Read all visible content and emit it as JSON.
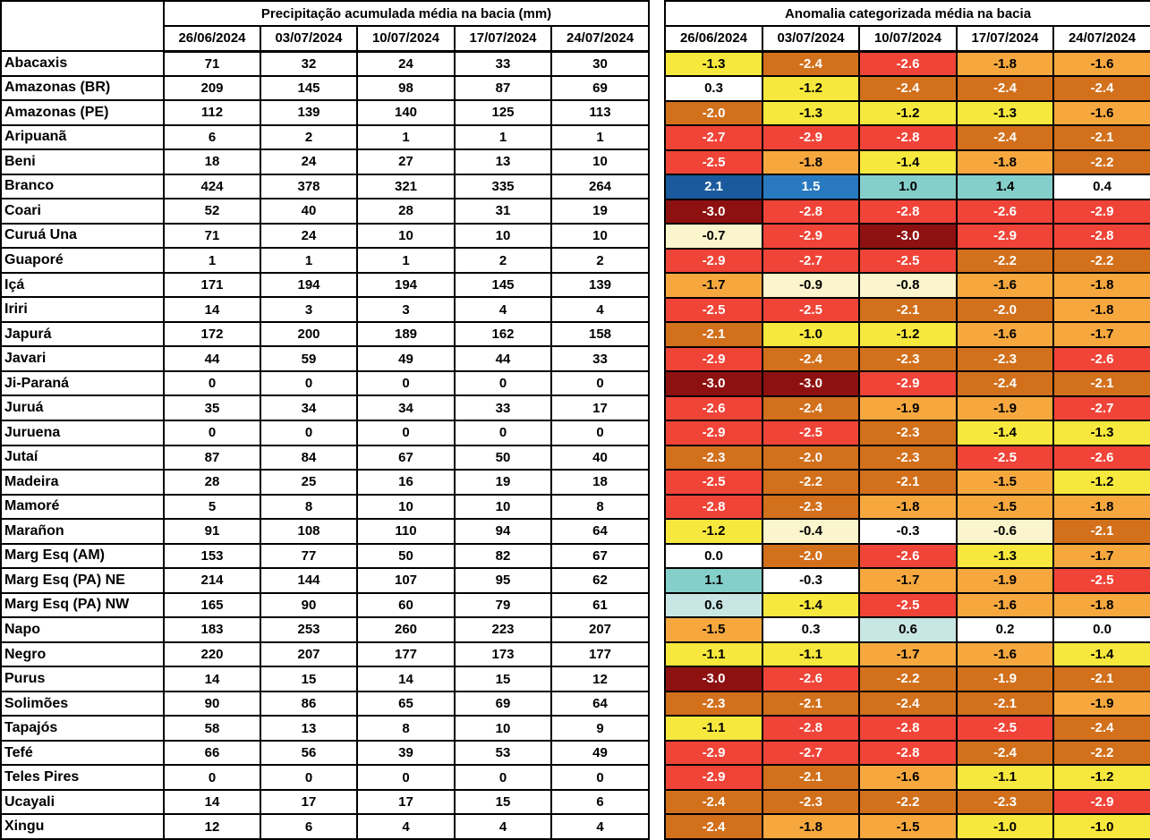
{
  "chart_data": [
    {
      "type": "table",
      "title": "Precipitação acumulada média na bacia (mm)",
      "columns": [
        "26/06/2024",
        "03/07/2024",
        "10/07/2024",
        "17/07/2024",
        "24/07/2024"
      ],
      "rows": [
        "Abacaxis",
        "Amazonas (BR)",
        "Amazonas (PE)",
        "Aripuanã",
        "Beni",
        "Branco",
        "Coari",
        "Curuá Una",
        "Guaporé",
        "Içá",
        "Iriri",
        "Japurá",
        "Javari",
        "Ji-Paraná",
        "Juruá",
        "Juruena",
        "Jutaí",
        "Madeira",
        "Mamoré",
        "Marañon",
        "Marg Esq (AM)",
        "Marg Esq (PA) NE",
        "Marg Esq (PA) NW",
        "Napo",
        "Negro",
        "Purus",
        "Solimões",
        "Tapajós",
        "Tefé",
        "Teles Pires",
        "Ucayali",
        "Xingu"
      ],
      "values": [
        [
          71,
          32,
          24,
          33,
          30
        ],
        [
          209,
          145,
          98,
          87,
          69
        ],
        [
          112,
          139,
          140,
          125,
          113
        ],
        [
          6,
          2,
          1,
          1,
          1
        ],
        [
          18,
          24,
          27,
          13,
          10
        ],
        [
          424,
          378,
          321,
          335,
          264
        ],
        [
          52,
          40,
          28,
          31,
          19
        ],
        [
          71,
          24,
          10,
          10,
          10
        ],
        [
          1,
          1,
          1,
          2,
          2
        ],
        [
          171,
          194,
          194,
          145,
          139
        ],
        [
          14,
          3,
          3,
          4,
          4
        ],
        [
          172,
          200,
          189,
          162,
          158
        ],
        [
          44,
          59,
          49,
          44,
          33
        ],
        [
          0,
          0,
          0,
          0,
          0
        ],
        [
          35,
          34,
          34,
          33,
          17
        ],
        [
          0,
          0,
          0,
          0,
          0
        ],
        [
          87,
          84,
          67,
          50,
          40
        ],
        [
          28,
          25,
          16,
          19,
          18
        ],
        [
          5,
          8,
          10,
          10,
          8
        ],
        [
          91,
          108,
          110,
          94,
          64
        ],
        [
          153,
          77,
          50,
          82,
          67
        ],
        [
          214,
          144,
          107,
          95,
          62
        ],
        [
          165,
          90,
          60,
          79,
          61
        ],
        [
          183,
          253,
          260,
          223,
          207
        ],
        [
          220,
          207,
          177,
          173,
          177
        ],
        [
          14,
          15,
          14,
          15,
          12
        ],
        [
          90,
          86,
          65,
          69,
          64
        ],
        [
          58,
          13,
          8,
          10,
          9
        ],
        [
          66,
          56,
          39,
          53,
          49
        ],
        [
          0,
          0,
          0,
          0,
          0
        ],
        [
          14,
          17,
          17,
          15,
          6
        ],
        [
          12,
          6,
          4,
          4,
          4
        ]
      ]
    },
    {
      "type": "heatmap",
      "title": "Anomalia categorizada média na bacia",
      "columns": [
        "26/06/2024",
        "03/07/2024",
        "10/07/2024",
        "17/07/2024",
        "24/07/2024"
      ],
      "rows": [
        "Abacaxis",
        "Amazonas (BR)",
        "Amazonas (PE)",
        "Aripuanã",
        "Beni",
        "Branco",
        "Coari",
        "Curuá Una",
        "Guaporé",
        "Içá",
        "Iriri",
        "Japurá",
        "Javari",
        "Ji-Paraná",
        "Juruá",
        "Juruena",
        "Jutaí",
        "Madeira",
        "Mamoré",
        "Marañon",
        "Marg Esq (AM)",
        "Marg Esq (PA) NE",
        "Marg Esq (PA) NW",
        "Napo",
        "Negro",
        "Purus",
        "Solimões",
        "Tapajós",
        "Tefé",
        "Teles Pires",
        "Ucayali",
        "Xingu"
      ],
      "values": [
        [
          "-1.3",
          "-2.4",
          "-2.6",
          "-1.8",
          "-1.6"
        ],
        [
          "0.3",
          "-1.2",
          "-2.4",
          "-2.4",
          "-2.4"
        ],
        [
          "-2.0",
          "-1.3",
          "-1.2",
          "-1.3",
          "-1.6"
        ],
        [
          "-2.7",
          "-2.9",
          "-2.8",
          "-2.4",
          "-2.1"
        ],
        [
          "-2.5",
          "-1.8",
          "-1.4",
          "-1.8",
          "-2.2"
        ],
        [
          "2.1",
          "1.5",
          "1.0",
          "1.4",
          "0.4"
        ],
        [
          "-3.0",
          "-2.8",
          "-2.8",
          "-2.6",
          "-2.9"
        ],
        [
          "-0.7",
          "-2.9",
          "-3.0",
          "-2.9",
          "-2.8"
        ],
        [
          "-2.9",
          "-2.7",
          "-2.5",
          "-2.2",
          "-2.2"
        ],
        [
          "-1.7",
          "-0.9",
          "-0.8",
          "-1.6",
          "-1.8"
        ],
        [
          "-2.5",
          "-2.5",
          "-2.1",
          "-2.0",
          "-1.8"
        ],
        [
          "-2.1",
          "-1.0",
          "-1.2",
          "-1.6",
          "-1.7"
        ],
        [
          "-2.9",
          "-2.4",
          "-2.3",
          "-2.3",
          "-2.6"
        ],
        [
          "-3.0",
          "-3.0",
          "-2.9",
          "-2.4",
          "-2.1"
        ],
        [
          "-2.6",
          "-2.4",
          "-1.9",
          "-1.9",
          "-2.7"
        ],
        [
          "-2.9",
          "-2.5",
          "-2.3",
          "-1.4",
          "-1.3"
        ],
        [
          "-2.3",
          "-2.0",
          "-2.3",
          "-2.5",
          "-2.6"
        ],
        [
          "-2.5",
          "-2.2",
          "-2.1",
          "-1.5",
          "-1.2"
        ],
        [
          "-2.8",
          "-2.3",
          "-1.8",
          "-1.5",
          "-1.8"
        ],
        [
          "-1.2",
          "-0.4",
          "-0.3",
          "-0.6",
          "-2.1"
        ],
        [
          "0.0",
          "-2.0",
          "-2.6",
          "-1.3",
          "-1.7"
        ],
        [
          "1.1",
          "-0.3",
          "-1.7",
          "-1.9",
          "-2.5"
        ],
        [
          "0.6",
          "-1.4",
          "-2.5",
          "-1.6",
          "-1.8"
        ],
        [
          "-1.5",
          "0.3",
          "0.6",
          "0.2",
          "0.0"
        ],
        [
          "-1.1",
          "-1.1",
          "-1.7",
          "-1.6",
          "-1.4"
        ],
        [
          "-3.0",
          "-2.6",
          "-2.2",
          "-1.9",
          "-2.1"
        ],
        [
          "-2.3",
          "-2.1",
          "-2.4",
          "-2.1",
          "-1.9"
        ],
        [
          "-1.1",
          "-2.8",
          "-2.8",
          "-2.5",
          "-2.4"
        ],
        [
          "-2.9",
          "-2.7",
          "-2.8",
          "-2.4",
          "-2.2"
        ],
        [
          "-2.9",
          "-2.1",
          "-1.6",
          "-1.1",
          "-1.2"
        ],
        [
          "-2.4",
          "-2.3",
          "-2.2",
          "-2.3",
          "-2.9"
        ],
        [
          "-2.4",
          "-1.8",
          "-1.5",
          "-1.0",
          "-1.0"
        ]
      ],
      "cell_colors": [
        [
          "yellow",
          "dark_orange",
          "red",
          "orange",
          "orange"
        ],
        [
          "white",
          "yellow",
          "dark_orange",
          "dark_orange",
          "dark_orange"
        ],
        [
          "dark_orange",
          "yellow",
          "yellow",
          "yellow",
          "orange"
        ],
        [
          "red",
          "red",
          "red",
          "dark_orange",
          "dark_orange"
        ],
        [
          "red",
          "orange",
          "yellow",
          "orange",
          "dark_orange"
        ],
        [
          "dark_blue",
          "blue",
          "teal",
          "teal",
          "white"
        ],
        [
          "maroon",
          "red",
          "red",
          "red",
          "red"
        ],
        [
          "cream",
          "red",
          "maroon",
          "red",
          "red"
        ],
        [
          "red",
          "red",
          "red",
          "dark_orange",
          "dark_orange"
        ],
        [
          "orange",
          "cream",
          "cream",
          "orange",
          "orange"
        ],
        [
          "red",
          "red",
          "dark_orange",
          "dark_orange",
          "orange"
        ],
        [
          "dark_orange",
          "yellow",
          "yellow",
          "orange",
          "orange"
        ],
        [
          "red",
          "dark_orange",
          "dark_orange",
          "dark_orange",
          "red"
        ],
        [
          "maroon",
          "maroon",
          "red",
          "dark_orange",
          "dark_orange"
        ],
        [
          "red",
          "dark_orange",
          "orange",
          "orange",
          "red"
        ],
        [
          "red",
          "red",
          "dark_orange",
          "yellow",
          "yellow"
        ],
        [
          "dark_orange",
          "dark_orange",
          "dark_orange",
          "red",
          "red"
        ],
        [
          "red",
          "dark_orange",
          "dark_orange",
          "orange",
          "yellow"
        ],
        [
          "red",
          "dark_orange",
          "orange",
          "orange",
          "orange"
        ],
        [
          "yellow",
          "cream",
          "white",
          "cream",
          "dark_orange"
        ],
        [
          "white",
          "dark_orange",
          "red",
          "yellow",
          "orange"
        ],
        [
          "teal",
          "white",
          "orange",
          "orange",
          "red"
        ],
        [
          "pale_teal",
          "yellow",
          "red",
          "orange",
          "orange"
        ],
        [
          "orange",
          "white",
          "pale_teal",
          "white",
          "white"
        ],
        [
          "yellow",
          "yellow",
          "orange",
          "orange",
          "yellow"
        ],
        [
          "maroon",
          "red",
          "dark_orange",
          "dark_orange",
          "dark_orange"
        ],
        [
          "dark_orange",
          "dark_orange",
          "dark_orange",
          "dark_orange",
          "orange"
        ],
        [
          "yellow",
          "red",
          "red",
          "red",
          "dark_orange"
        ],
        [
          "red",
          "red",
          "red",
          "dark_orange",
          "dark_orange"
        ],
        [
          "red",
          "dark_orange",
          "orange",
          "yellow",
          "yellow"
        ],
        [
          "dark_orange",
          "dark_orange",
          "dark_orange",
          "dark_orange",
          "red"
        ],
        [
          "dark_orange",
          "orange",
          "orange",
          "yellow",
          "yellow"
        ]
      ]
    }
  ],
  "palette": {
    "maroon": {
      "bg": "#8E1111",
      "fg": "#FFFFFF"
    },
    "red": {
      "bg": "#F04438",
      "fg": "#FFFFFF"
    },
    "dark_orange": {
      "bg": "#D2701C",
      "fg": "#FFFFFF"
    },
    "orange": {
      "bg": "#F6A83F",
      "fg": "#000000"
    },
    "yellow": {
      "bg": "#F7E83D",
      "fg": "#000000"
    },
    "cream": {
      "bg": "#FAF5CC",
      "fg": "#000000"
    },
    "white": {
      "bg": "#FFFFFF",
      "fg": "#000000"
    },
    "pale_teal": {
      "bg": "#C8E6E3",
      "fg": "#000000"
    },
    "teal": {
      "bg": "#85CFCB",
      "fg": "#000000"
    },
    "blue": {
      "bg": "#2979C0",
      "fg": "#FFFFFF"
    },
    "dark_blue": {
      "bg": "#1A5A9C",
      "fg": "#FFFFFF"
    }
  }
}
